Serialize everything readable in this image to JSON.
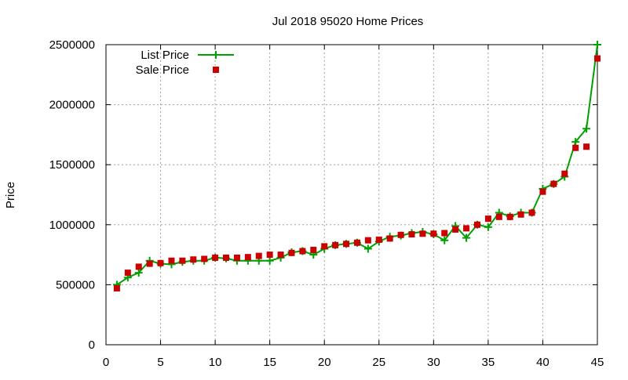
{
  "chart_data": {
    "type": "line",
    "title": "Jul 2018 95020 Home Prices",
    "xlabel": "",
    "ylabel": "Price",
    "xlim": [
      0,
      45
    ],
    "ylim": [
      0,
      2500000
    ],
    "xticks": [
      0,
      5,
      10,
      15,
      20,
      25,
      30,
      35,
      40,
      45
    ],
    "yticks": [
      0,
      500000,
      1000000,
      1500000,
      2000000,
      2500000
    ],
    "grid": true,
    "legend_position": "top-left",
    "x": [
      1,
      2,
      3,
      4,
      5,
      6,
      7,
      8,
      9,
      10,
      11,
      12,
      13,
      14,
      15,
      16,
      17,
      18,
      19,
      20,
      21,
      22,
      23,
      24,
      25,
      26,
      27,
      28,
      29,
      30,
      31,
      32,
      33,
      34,
      35,
      36,
      37,
      38,
      39,
      40,
      41,
      42,
      43,
      44,
      45
    ],
    "series": [
      {
        "name": "List Price",
        "style": "linespoints",
        "color": "#00a000",
        "values": [
          500000,
          560000,
          600000,
          700000,
          675000,
          670000,
          690000,
          700000,
          700000,
          725000,
          720000,
          700000,
          700000,
          700000,
          700000,
          725000,
          770000,
          780000,
          750000,
          800000,
          830000,
          840000,
          850000,
          800000,
          860000,
          900000,
          910000,
          930000,
          940000,
          920000,
          870000,
          990000,
          890000,
          1000000,
          980000,
          1100000,
          1070000,
          1100000,
          1100000,
          1300000,
          1340000,
          1400000,
          1690000,
          1800000,
          2500000
        ]
      },
      {
        "name": "Sale Price",
        "style": "points",
        "color": "#cc0000",
        "values": [
          470000,
          600000,
          650000,
          675000,
          680000,
          700000,
          700000,
          710000,
          715000,
          725000,
          725000,
          725000,
          730000,
          740000,
          750000,
          750000,
          765000,
          780000,
          790000,
          820000,
          830000,
          840000,
          850000,
          870000,
          875000,
          885000,
          915000,
          920000,
          925000,
          925000,
          930000,
          960000,
          970000,
          1000000,
          1050000,
          1065000,
          1065000,
          1085000,
          1100000,
          1275000,
          1340000,
          1425000,
          1640000,
          1650000,
          2385000
        ]
      }
    ]
  }
}
